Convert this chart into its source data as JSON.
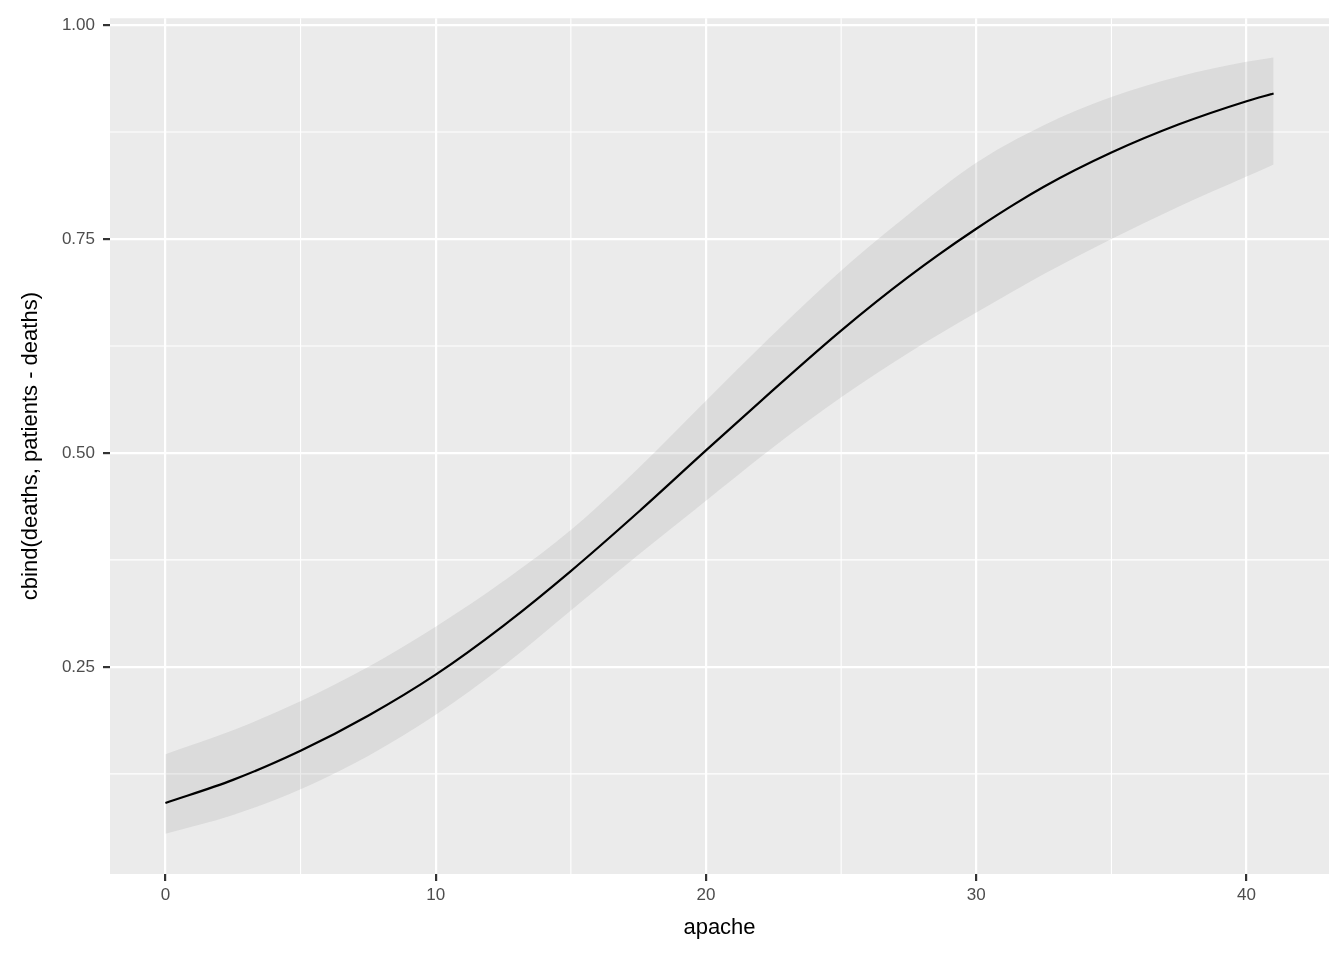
{
  "chart_data": {
    "type": "line",
    "xlabel": "apache",
    "ylabel": "cbind(deaths, patients - deaths)",
    "x": [
      0,
      2.5,
      5,
      7.5,
      10,
      12.5,
      15,
      17.5,
      20,
      22.5,
      25,
      27.5,
      30,
      32.5,
      35,
      37.5,
      40,
      41
    ],
    "series": [
      {
        "color": "#000000",
        "values": [
          0.091,
          0.118,
          0.152,
          0.193,
          0.241,
          0.298,
          0.362,
          0.431,
          0.503,
          0.574,
          0.643,
          0.706,
          0.762,
          0.811,
          0.851,
          0.884,
          0.911,
          0.92
        ],
        "upper": [
          0.148,
          0.176,
          0.21,
          0.25,
          0.297,
          0.35,
          0.41,
          0.482,
          0.561,
          0.639,
          0.713,
          0.779,
          0.839,
          0.883,
          0.916,
          0.94,
          0.957,
          0.962
        ],
        "lower": [
          0.055,
          0.077,
          0.107,
          0.146,
          0.194,
          0.251,
          0.316,
          0.381,
          0.444,
          0.507,
          0.565,
          0.617,
          0.664,
          0.709,
          0.75,
          0.788,
          0.823,
          0.837
        ]
      }
    ],
    "xlim": [
      -2.05,
      43.05
    ],
    "ylim": [
      0.008,
      1.008
    ],
    "xticks": [
      0,
      10,
      20,
      30,
      40
    ],
    "yticks": [
      0.25,
      {
        "value": 0.5,
        "label": "0.50"
      },
      0.75,
      {
        "value": 1,
        "label": "1.00"
      }
    ],
    "grid": true,
    "legend": false,
    "marker": "none",
    "line_style": "solid"
  }
}
